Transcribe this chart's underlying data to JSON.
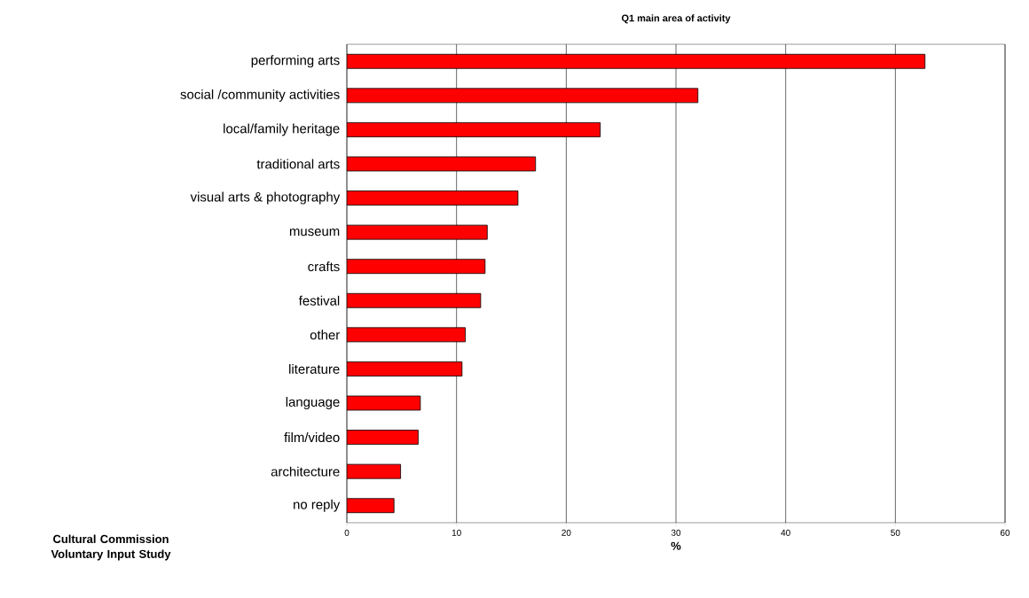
{
  "chart_data": {
    "type": "bar",
    "orientation": "horizontal",
    "title": "Q1 main area of activity",
    "xlabel": "%",
    "categories": [
      "performing arts",
      "social /community activities",
      "local/family heritage",
      "traditional arts",
      "visual arts & photography",
      "museum",
      "crafts",
      "festival",
      "other",
      "literature",
      "language",
      "film/video",
      "architecture",
      "no reply"
    ],
    "values": [
      52.7,
      32.0,
      23.1,
      17.2,
      15.6,
      12.8,
      12.6,
      12.2,
      10.8,
      10.5,
      6.7,
      6.5,
      4.9,
      4.3
    ],
    "color": "#ff0000",
    "xlim": [
      0,
      60
    ],
    "xticks": [
      0,
      10,
      20,
      30,
      40,
      50,
      60
    ],
    "grid": "x",
    "annotations": [
      "Cultural Commission Voluntary Input Study"
    ]
  }
}
